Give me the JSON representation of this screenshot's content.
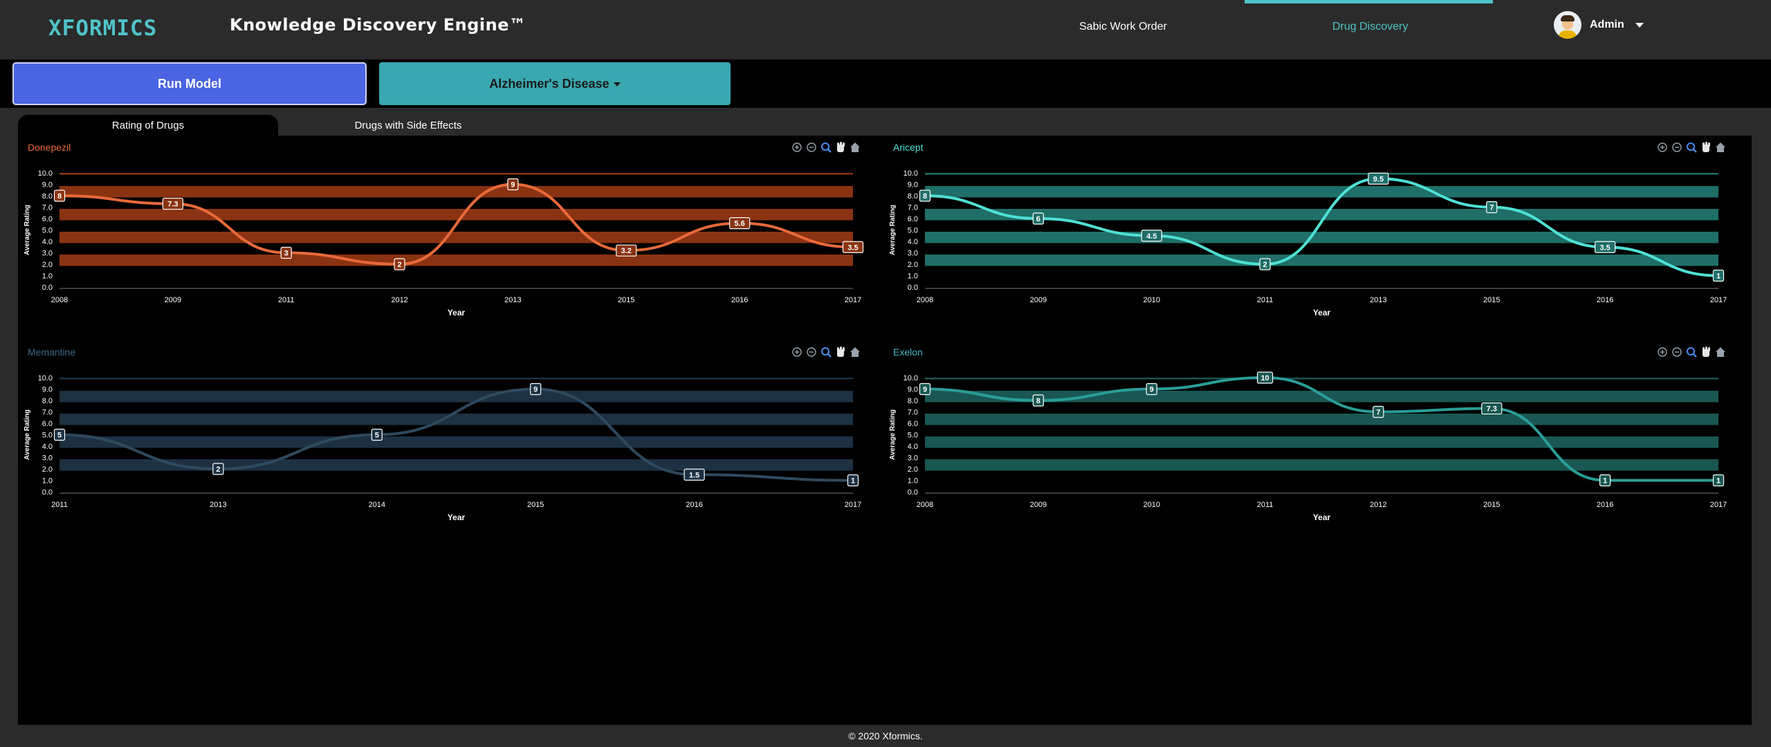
{
  "header": {
    "logo_text": "XFORMICS",
    "app_title": "Knowledge Discovery Engine™",
    "nav": [
      {
        "label": "Sabic Work Order"
      },
      {
        "label": "Drug Discovery"
      }
    ],
    "user_name": "Admin"
  },
  "toolbar": {
    "run_label": "Run Model",
    "disease_label": "Alzheimer's Disease"
  },
  "tabs": [
    {
      "label": "Rating of Drugs"
    },
    {
      "label": "Drugs with Side Effects"
    }
  ],
  "footer": {
    "text": "© 2020 Xformics."
  },
  "chart_data": [
    {
      "type": "line",
      "title": "Donepezil",
      "color": "#e8693a",
      "band_color": "#8a3312",
      "title_color": "#e8693a",
      "categories": [
        "2008",
        "2009",
        "2011",
        "2012",
        "2013",
        "2015",
        "2016",
        "2017"
      ],
      "values": [
        8,
        7.3,
        3,
        2,
        9,
        3.2,
        5.6,
        3.5
      ],
      "labels": [
        "8",
        "7.3",
        "3",
        "2",
        "9",
        "3.2",
        "5.6",
        "3.5"
      ],
      "xlabel": "Year",
      "ylabel": "Average Rating",
      "ylim": [
        0,
        10
      ],
      "yticks": [
        "0.0",
        "1.0",
        "2.0",
        "3.0",
        "4.0",
        "5.0",
        "6.0",
        "7.0",
        "8.0",
        "9.0",
        "10.0"
      ]
    },
    {
      "type": "line",
      "title": "Aricept",
      "color": "#4fe0d4",
      "band_color": "#1f6e67",
      "title_color": "#4fe0d4",
      "categories": [
        "2008",
        "2009",
        "2010",
        "2011",
        "2013",
        "2015",
        "2016",
        "2017"
      ],
      "values": [
        8,
        6,
        4.5,
        2,
        9.5,
        7,
        3.5,
        1
      ],
      "labels": [
        "8",
        "6",
        "4.5",
        "2",
        "9.5",
        "7",
        "3.5",
        "1"
      ],
      "xlabel": "Year",
      "ylabel": "Average Rating",
      "ylim": [
        0,
        10
      ],
      "yticks": [
        "0.0",
        "1.0",
        "2.0",
        "3.0",
        "4.0",
        "5.0",
        "6.0",
        "7.0",
        "8.0",
        "9.0",
        "10.0"
      ]
    },
    {
      "type": "line",
      "title": "Memantine",
      "color": "#2f4a5e",
      "band_color": "#1d3142",
      "title_color": "#3d6a8a",
      "categories": [
        "2011",
        "2013",
        "2014",
        "2015",
        "2016",
        "2017"
      ],
      "values": [
        5,
        2,
        5,
        9,
        1.5,
        1
      ],
      "labels": [
        "5",
        "2",
        "5",
        "9",
        "1.5",
        "1"
      ],
      "xlabel": "Year",
      "ylabel": "Average Rating",
      "ylim": [
        0,
        10
      ],
      "yticks": [
        "0.0",
        "1.0",
        "2.0",
        "3.0",
        "4.0",
        "5.0",
        "6.0",
        "7.0",
        "8.0",
        "9.0",
        "10.0"
      ]
    },
    {
      "type": "line",
      "title": "Exelon",
      "color": "#2a9d97",
      "band_color": "#1a5753",
      "title_color": "#3fb8c8",
      "categories": [
        "2008",
        "2009",
        "2010",
        "2011",
        "2012",
        "2015",
        "2016",
        "2017"
      ],
      "values": [
        9,
        8,
        9,
        10,
        7,
        7.3,
        1,
        1
      ],
      "labels": [
        "9",
        "8",
        "9",
        "10",
        "7",
        "7.3",
        "1",
        "1"
      ],
      "xlabel": "Year",
      "ylabel": "Average Rating",
      "ylim": [
        0,
        10
      ],
      "yticks": [
        "0.0",
        "1.0",
        "2.0",
        "3.0",
        "4.0",
        "5.0",
        "6.0",
        "7.0",
        "8.0",
        "9.0",
        "10.0"
      ]
    }
  ]
}
